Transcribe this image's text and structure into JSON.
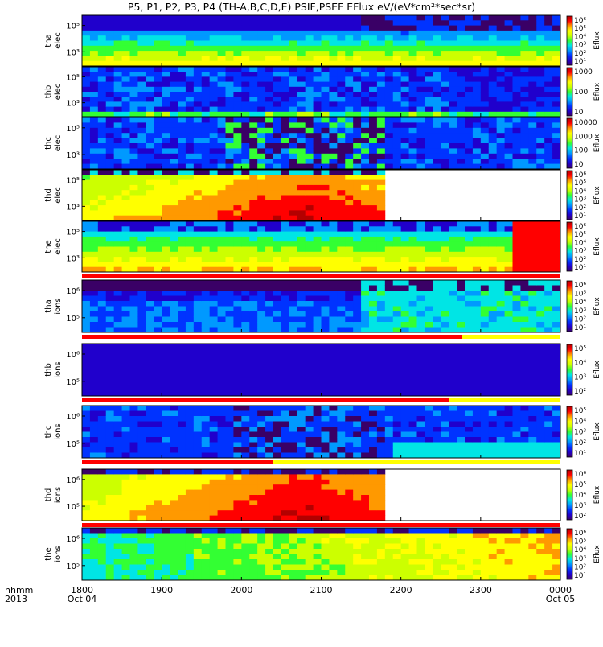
{
  "chart_data": {
    "type": "heatmap",
    "title": "P5, P1, P2, P3, P4  (TH-A,B,C,D,E) PSIF,PSEF EFlux eV/(eV*cm²*sec*sr)",
    "time_axis": {
      "label_rows": [
        "hhmm",
        "2013"
      ],
      "ticks": [
        {
          "value": "1800",
          "date": "Oct 04"
        },
        {
          "value": "1900",
          "date": ""
        },
        {
          "value": "2000",
          "date": ""
        },
        {
          "value": "2100",
          "date": ""
        },
        {
          "value": "2200",
          "date": ""
        },
        {
          "value": "2300",
          "date": ""
        },
        {
          "value": "0000",
          "date": "Oct 05"
        }
      ],
      "range_hours": [
        18,
        24
      ]
    },
    "panels": [
      {
        "label": [
          "tha",
          "elec"
        ],
        "yticks": [
          "10⁵",
          "10³"
        ],
        "colorbar_label": "Eflux",
        "colorbar_ticks": [
          "10⁶",
          "10⁵",
          "10⁴",
          "10³",
          "10²",
          "10¹"
        ],
        "flag_bar": false
      },
      {
        "label": [
          "thb",
          "elec"
        ],
        "yticks": [
          "10⁵",
          "10³"
        ],
        "colorbar_label": "Eflux",
        "colorbar_ticks": [
          "1000",
          "100",
          "10"
        ],
        "flag_bar": false
      },
      {
        "label": [
          "thc",
          "elec"
        ],
        "yticks": [
          "10⁵",
          "10³"
        ],
        "colorbar_label": "Eflux",
        "colorbar_ticks": [
          "10000",
          "1000",
          "100",
          "10"
        ],
        "flag_bar": false
      },
      {
        "label": [
          "thd",
          "elec"
        ],
        "yticks": [
          "10⁵",
          "10³"
        ],
        "colorbar_label": "Eflux",
        "colorbar_ticks": [
          "10⁶",
          "10⁵",
          "10⁴",
          "10³",
          "10²",
          "10¹"
        ],
        "flag_bar": false
      },
      {
        "label": [
          "the",
          "elec"
        ],
        "yticks": [
          "10⁵",
          "10³"
        ],
        "colorbar_label": "Eflux",
        "colorbar_ticks": [
          "10⁶",
          "10⁵",
          "10⁴",
          "10³",
          "10²",
          "10¹"
        ],
        "flag_bar": true,
        "flag_red_until_hours": 24
      },
      {
        "label": [
          "tha",
          "ions"
        ],
        "yticks": [
          "10⁶",
          "10⁵"
        ],
        "colorbar_label": "Eflux",
        "colorbar_ticks": [
          "10⁶",
          "10⁵",
          "10⁴",
          "10³",
          "10²",
          "10¹"
        ],
        "flag_bar": true,
        "flag_red_until_hours": 22.77
      },
      {
        "label": [
          "thb",
          "ions"
        ],
        "yticks": [
          "10⁶",
          "10⁵"
        ],
        "colorbar_label": "Eflux",
        "colorbar_ticks": [
          "10⁵",
          "10⁴",
          "10³",
          "10²"
        ],
        "flag_bar": true,
        "flag_red_until_hours": 22.6
      },
      {
        "label": [
          "thc",
          "ions"
        ],
        "yticks": [
          "10⁶",
          "10⁵"
        ],
        "colorbar_label": "Eflux",
        "colorbar_ticks": [
          "10⁵",
          "10⁴",
          "10³",
          "10²",
          "10¹"
        ],
        "flag_bar": true,
        "flag_red_until_hours": 20.4
      },
      {
        "label": [
          "thd",
          "ions"
        ],
        "yticks": [
          "10⁶",
          "10⁵"
        ],
        "colorbar_label": "Eflux",
        "colorbar_ticks": [
          "10⁶",
          "10⁵",
          "10⁴",
          "10³",
          "10²"
        ],
        "flag_bar": true,
        "flag_red_until_hours": 24
      },
      {
        "label": [
          "the",
          "ions"
        ],
        "yticks": [
          "10⁶",
          "10⁵"
        ],
        "colorbar_label": "Eflux",
        "colorbar_ticks": [
          "10⁶",
          "10⁵",
          "10⁴",
          "10³",
          "10²",
          "10¹"
        ],
        "flag_bar": false
      }
    ]
  },
  "colors": {
    "colormap": [
      "#3a0066",
      "#2000cc",
      "#0033ff",
      "#0099ff",
      "#00e5e5",
      "#33ff33",
      "#ccff00",
      "#ffff00",
      "#ff9900",
      "#ff0000",
      "#b30000"
    ],
    "flag_red": "#ff0000",
    "flag_yellow": "#ffff00"
  }
}
